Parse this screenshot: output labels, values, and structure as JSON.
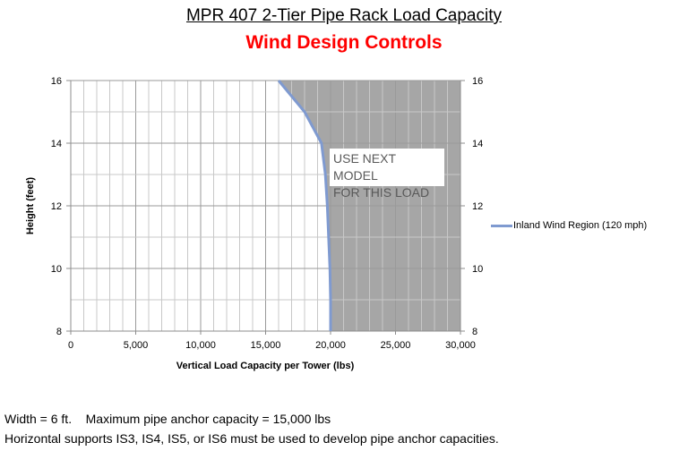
{
  "header": {
    "title": "MPR 407  2-Tier Pipe Rack Load Capacity",
    "subtitle": "Wind Design Controls"
  },
  "annotation": {
    "line1": "USE NEXT MODEL",
    "line2": "FOR THIS LOAD"
  },
  "legend": {
    "label": "Inland Wind Region (120 mph)",
    "color": "#7f9ad0"
  },
  "footer": {
    "line1": "Width = 6 ft.    Maximum pipe anchor capacity = 15,000 lbs",
    "line2": "Horizontal supports IS3, IS4, IS5, or IS6 must be used to develop pipe anchor capacities."
  },
  "colors": {
    "subtitle": "#ff0000",
    "exceed_region": "#a6a6a6",
    "series": "#7f9ad0"
  },
  "chart_data": {
    "type": "line",
    "title": "MPR 407  2-Tier Pipe Rack Load Capacity",
    "subtitle": "Wind Design Controls",
    "xlabel": "Vertical Load Capacity per Tower (lbs)",
    "ylabel": "Height (feet)",
    "xlim": [
      0,
      30000
    ],
    "ylim": [
      8,
      16
    ],
    "x_ticks": [
      "0",
      "5,000",
      "10,000",
      "15,000",
      "20,000",
      "25,000",
      "30,000"
    ],
    "y_ticks": [
      "8",
      "10",
      "12",
      "14",
      "16"
    ],
    "y_ticks_secondary": [
      "8",
      "10",
      "12",
      "14",
      "16"
    ],
    "grid": true,
    "x_minor_step": 1000,
    "y_minor_step": 1,
    "legend_position": "right",
    "series": [
      {
        "name": "Inland Wind Region (120 mph)",
        "points": [
          {
            "x": 16000,
            "y": 16
          },
          {
            "x": 18000,
            "y": 15
          },
          {
            "x": 19300,
            "y": 14
          },
          {
            "x": 19600,
            "y": 13
          },
          {
            "x": 19750,
            "y": 12
          },
          {
            "x": 19850,
            "y": 11
          },
          {
            "x": 19950,
            "y": 10
          },
          {
            "x": 20000,
            "y": 9
          },
          {
            "x": 20000,
            "y": 8
          }
        ]
      }
    ],
    "annotations": [
      {
        "text": "USE NEXT MODEL FOR THIS LOAD",
        "region": "shaded area right of curve"
      }
    ]
  }
}
